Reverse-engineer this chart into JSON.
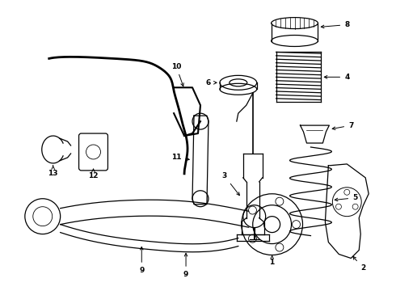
{
  "background_color": "#ffffff",
  "line_color": "#000000",
  "lw": 0.9,
  "figsize": [
    4.9,
    3.6
  ],
  "dpi": 100
}
